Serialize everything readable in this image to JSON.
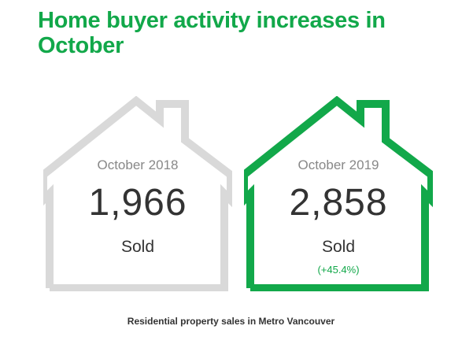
{
  "title": "Home buyer activity increases in October",
  "houses": [
    {
      "period": "October 2018",
      "value": "1,966",
      "unit": "Sold",
      "change": "",
      "outline_color": "#d9d9d9"
    },
    {
      "period": "October 2019",
      "value": "2,858",
      "unit": "Sold",
      "change": "(+45.4%)",
      "outline_color": "#12a84a"
    }
  ],
  "caption": "Residential property sales in Metro Vancouver",
  "colors": {
    "accent": "#12a84a",
    "muted_outline": "#d9d9d9",
    "text": "#333333"
  }
}
